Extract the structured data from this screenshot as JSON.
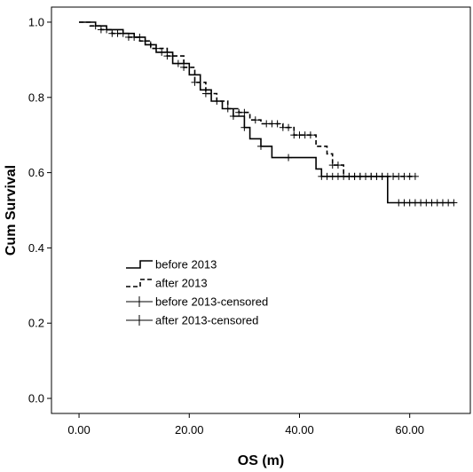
{
  "chart_data": {
    "type": "line",
    "title": "",
    "xlabel": "OS (m)",
    "ylabel": "Cum Survival",
    "xlim": [
      -5,
      71
    ],
    "ylim": [
      -0.04,
      1.04
    ],
    "x_ticks": [
      0,
      20,
      40,
      60
    ],
    "x_tick_labels": [
      "0.00",
      "20.00",
      "40.00",
      "60.00"
    ],
    "y_ticks": [
      0.0,
      0.2,
      0.4,
      0.6,
      0.8,
      1.0
    ],
    "y_tick_labels": [
      "0.0",
      "0.2",
      "0.4",
      "0.6",
      "0.8",
      "1.0"
    ],
    "grid": false,
    "legend_position": "center-left",
    "legend": [
      {
        "label": "before 2013",
        "symbol": "step-solid"
      },
      {
        "label": "after 2013",
        "symbol": "step-dashed"
      },
      {
        "label": "before 2013-censored",
        "symbol": "plus"
      },
      {
        "label": "after 2013-censored",
        "symbol": "plus"
      }
    ],
    "series": [
      {
        "name": "before 2013",
        "style": "solid",
        "steps": [
          [
            0,
            1.0
          ],
          [
            3,
            0.99
          ],
          [
            5,
            0.98
          ],
          [
            8,
            0.97
          ],
          [
            10,
            0.96
          ],
          [
            12,
            0.94
          ],
          [
            14,
            0.92
          ],
          [
            17,
            0.89
          ],
          [
            20,
            0.86
          ],
          [
            22,
            0.82
          ],
          [
            24,
            0.79
          ],
          [
            26,
            0.77
          ],
          [
            28,
            0.75
          ],
          [
            30,
            0.72
          ],
          [
            31,
            0.69
          ],
          [
            33,
            0.67
          ],
          [
            35,
            0.64
          ],
          [
            43,
            0.61
          ],
          [
            44,
            0.59
          ],
          [
            56,
            0.52
          ],
          [
            68,
            0.52
          ]
        ],
        "censored_x": [
          44,
          45,
          46,
          47,
          48,
          49,
          50,
          51,
          52,
          53,
          54,
          55,
          58,
          59,
          60,
          61,
          62,
          63,
          64,
          65,
          66,
          67,
          68,
          5,
          8,
          11,
          13,
          15,
          18,
          28,
          30,
          33,
          38
        ]
      },
      {
        "name": "after 2013",
        "style": "dashed",
        "steps": [
          [
            0,
            1.0
          ],
          [
            2,
            0.99
          ],
          [
            4,
            0.98
          ],
          [
            6,
            0.97
          ],
          [
            9,
            0.96
          ],
          [
            11,
            0.95
          ],
          [
            13,
            0.93
          ],
          [
            16,
            0.91
          ],
          [
            19,
            0.88
          ],
          [
            21,
            0.84
          ],
          [
            23,
            0.81
          ],
          [
            25,
            0.79
          ],
          [
            27,
            0.77
          ],
          [
            29,
            0.76
          ],
          [
            31,
            0.74
          ],
          [
            33,
            0.73
          ],
          [
            37,
            0.72
          ],
          [
            39,
            0.7
          ],
          [
            43,
            0.67
          ],
          [
            45,
            0.65
          ],
          [
            46,
            0.62
          ],
          [
            48,
            0.59
          ],
          [
            61,
            0.59
          ]
        ],
        "censored_x": [
          3,
          4,
          6,
          7,
          9,
          10,
          12,
          14,
          16,
          17,
          19,
          21,
          23,
          25,
          27,
          29,
          30,
          32,
          34,
          35,
          36,
          37,
          38,
          39,
          40,
          41,
          42,
          46,
          47,
          49,
          50,
          51,
          52,
          53,
          54,
          55,
          56,
          57,
          58,
          59,
          60,
          61
        ]
      }
    ]
  }
}
